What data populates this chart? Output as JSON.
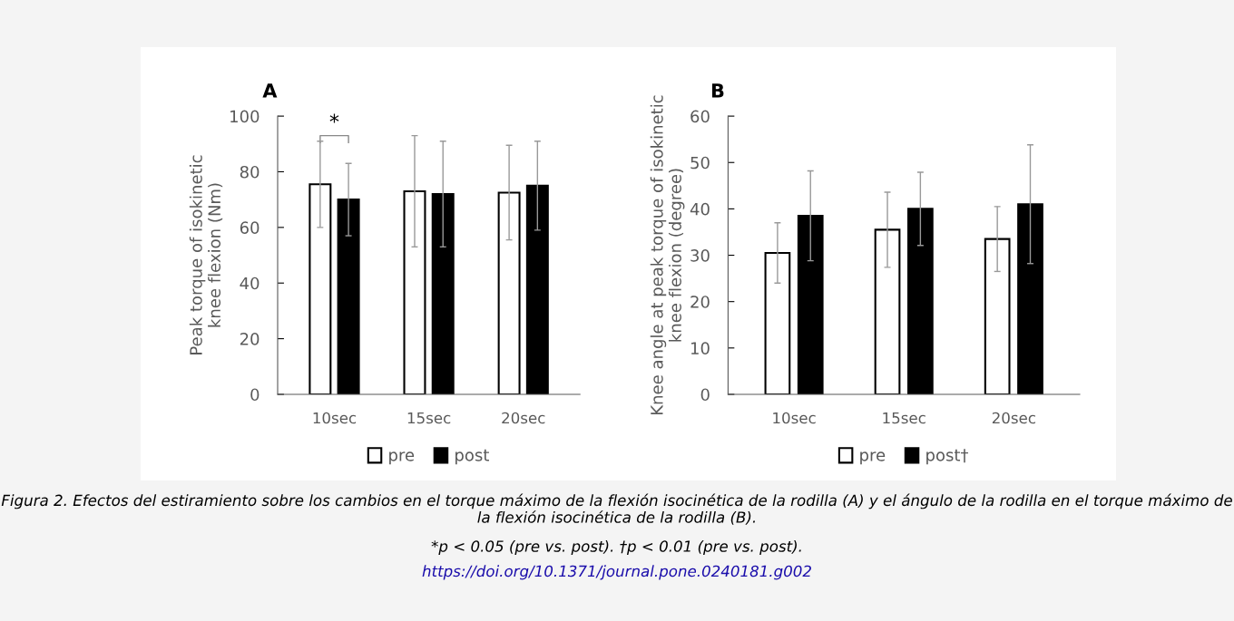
{
  "chart_data": [
    {
      "type": "bar",
      "title": "A",
      "ylabel": "Peak torque of isokinetic knee flexion (Nm)",
      "categories": [
        "10sec",
        "15sec",
        "20sec"
      ],
      "series": [
        {
          "name": "pre",
          "color": "#ffffff",
          "values": [
            75.5,
            73,
            72.5
          ],
          "errors": [
            15.5,
            20,
            17
          ]
        },
        {
          "name": "post",
          "color": "#000000",
          "values": [
            70,
            72,
            75
          ],
          "errors": [
            13,
            19,
            16
          ]
        }
      ],
      "ylim": [
        0,
        100
      ],
      "yticks": [
        0,
        20,
        40,
        60,
        80,
        100
      ],
      "legend": "bottom",
      "grid": false,
      "annotations": [
        "*",
        "Figura 2. Efectos del estiramiento sobre los cambios en el torque máximo de la flexión isocinética de la rodilla (A) y el ángulo de la rodilla en el torque máximo de la flexión isocinética de la rodilla (B).",
        "*p < 0.05 (pre vs. post). †p < 0.01 (pre vs. post).",
        "https://doi.org/10.1371/journal.pone.0240181.g002"
      ]
    },
    {
      "type": "bar",
      "title": "B",
      "ylabel": "Knee angle at peak torque of isokinetic knee flexion (degree)",
      "categories": [
        "10sec",
        "15sec",
        "20sec"
      ],
      "series": [
        {
          "name": "pre",
          "color": "#ffffff",
          "values": [
            30.5,
            35.5,
            33.5
          ],
          "errors": [
            6.5,
            8.1,
            7
          ]
        },
        {
          "name": "post†",
          "color": "#000000",
          "values": [
            38.5,
            40,
            41
          ],
          "errors": [
            9.7,
            7.9,
            12.8
          ]
        }
      ],
      "ylim": [
        0,
        60
      ],
      "yticks": [
        0,
        10,
        20,
        30,
        40,
        50,
        60
      ],
      "legend": "bottom",
      "grid": false
    }
  ]
}
